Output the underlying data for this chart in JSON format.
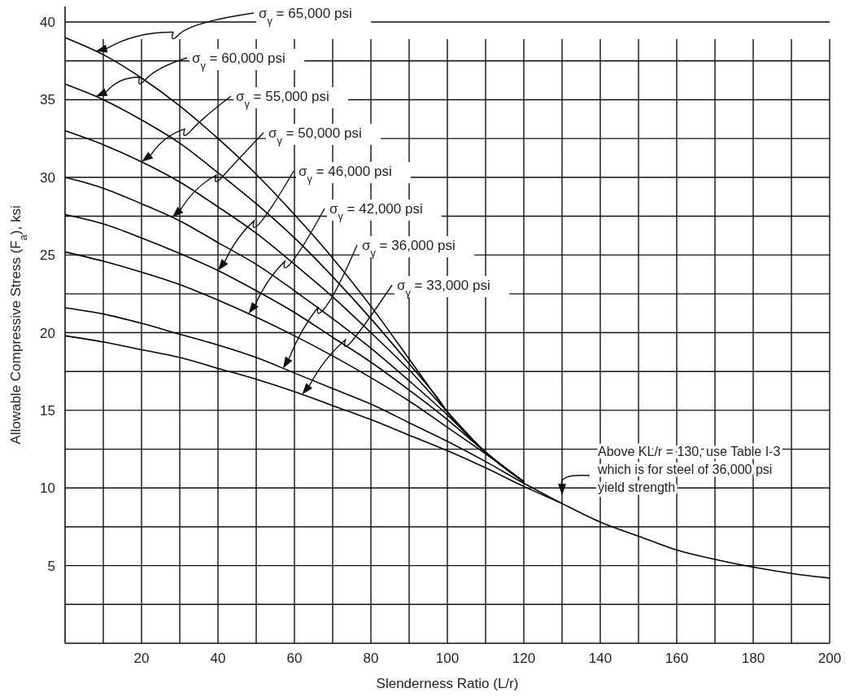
{
  "chart_data": {
    "type": "line",
    "xlabel": "Slenderness Ratio (L/r)",
    "ylabel": "Allowable Compressive Stress (F$_{a}$), ksi",
    "xlim": [
      0,
      200
    ],
    "ylim": [
      0,
      41
    ],
    "xticks": [
      {
        "value": 10,
        "label": null
      },
      20,
      {
        "value": 30,
        "label": null
      },
      40,
      {
        "value": 50,
        "label": null
      },
      60,
      {
        "value": 70,
        "label": null
      },
      80,
      {
        "value": 90,
        "label": null
      },
      100,
      {
        "value": 110,
        "label": null
      },
      120,
      {
        "value": 130,
        "label": null
      },
      140,
      {
        "value": 150,
        "label": null
      },
      160,
      {
        "value": 170,
        "label": null
      },
      180,
      {
        "value": 190,
        "label": null
      },
      200
    ],
    "yticks": [
      {
        "value": 2.5,
        "label": null
      },
      5,
      {
        "value": 7.5,
        "label": null
      },
      10,
      {
        "value": 12.5,
        "label": null
      },
      15,
      {
        "value": 17.5,
        "label": null
      },
      20,
      {
        "value": 22.5,
        "label": null
      },
      25,
      {
        "value": 27.5,
        "label": null
      },
      30,
      {
        "value": 32.5,
        "label": null
      },
      35,
      {
        "value": 37.5,
        "label": null
      },
      40
    ],
    "grid": true,
    "series": [
      {
        "name": "σ$_{γ}$ = 65,000 psi",
        "color": "#000000",
        "x": [
          0,
          10,
          20,
          30,
          40,
          50,
          60,
          70,
          80,
          90,
          93.8,
          100,
          110,
          120
        ],
        "values": [
          39.0,
          37.9,
          36.4,
          34.6,
          32.5,
          30.2,
          27.6,
          24.8,
          21.7,
          18.3,
          17.0,
          14.9,
          12.3,
          10.4
        ]
      },
      {
        "name": "σ$_{γ}$ = 60,000 psi",
        "color": "#000000",
        "x": [
          0,
          10,
          20,
          30,
          40,
          50,
          60,
          70,
          80,
          90,
          97.7,
          100,
          110,
          120
        ],
        "values": [
          36.0,
          35.0,
          33.7,
          32.2,
          30.3,
          28.3,
          26.1,
          23.6,
          20.9,
          18.0,
          15.7,
          14.9,
          12.3,
          10.4
        ]
      },
      {
        "name": "σ$_{γ}$ = 55,000 psi",
        "color": "#000000",
        "x": [
          0,
          10,
          20,
          30,
          40,
          50,
          60,
          70,
          80,
          90,
          100,
          110,
          120
        ],
        "values": [
          33.0,
          32.1,
          31.0,
          29.7,
          28.1,
          26.4,
          24.4,
          22.3,
          20.0,
          17.6,
          14.9,
          12.3,
          10.4
        ]
      },
      {
        "name": "σ$_{γ}$ = 50,000 psi",
        "color": "#000000",
        "x": [
          0,
          10,
          20,
          30,
          40,
          50,
          60,
          70,
          80,
          90,
          100,
          107,
          110,
          120
        ],
        "values": [
          30.0,
          29.3,
          28.3,
          27.2,
          25.8,
          24.4,
          22.7,
          20.9,
          19.0,
          16.9,
          14.7,
          13.0,
          12.3,
          10.4
        ]
      },
      {
        "name": "σ$_{γ}$ = 46,000 psi",
        "color": "#000000",
        "x": [
          0,
          10,
          20,
          30,
          40,
          50,
          60,
          70,
          80,
          90,
          100,
          110,
          120
        ],
        "values": [
          27.6,
          27.0,
          26.1,
          25.1,
          24.0,
          22.7,
          21.3,
          19.7,
          18.1,
          16.3,
          14.4,
          12.3,
          10.4
        ]
      },
      {
        "name": "σ$_{γ}$ = 42,000 psi",
        "color": "#000000",
        "x": [
          0,
          10,
          20,
          30,
          40,
          50,
          60,
          70,
          80,
          90,
          100,
          110,
          116.7,
          120
        ],
        "values": [
          25.2,
          24.6,
          23.9,
          23.1,
          22.1,
          21.0,
          19.8,
          18.5,
          17.1,
          15.6,
          13.9,
          12.2,
          11.0,
          10.4
        ]
      },
      {
        "name": "σ$_{γ}$ = 36,000 psi",
        "color": "#000000",
        "x": [
          0,
          10,
          20,
          30,
          40,
          50,
          60,
          70,
          80,
          90,
          100,
          110,
          120,
          130,
          140,
          150,
          160,
          170,
          180,
          190,
          200
        ],
        "values": [
          21.6,
          21.2,
          20.6,
          19.9,
          19.2,
          18.4,
          17.4,
          16.4,
          15.4,
          14.2,
          13.0,
          11.7,
          10.3,
          9.0,
          7.8,
          6.9,
          6.0,
          5.4,
          4.9,
          4.5,
          4.2
        ]
      },
      {
        "name": "σ$_{γ}$ = 33,000 psi",
        "color": "#000000",
        "x": [
          0,
          10,
          20,
          30,
          40,
          50,
          60,
          70,
          80,
          90,
          100,
          110,
          120,
          130
        ],
        "values": [
          19.8,
          19.4,
          18.9,
          18.4,
          17.7,
          17.0,
          16.2,
          15.3,
          14.4,
          13.4,
          12.4,
          11.3,
          10.1,
          9.0
        ]
      }
    ],
    "annotations": [
      {
        "text": "Above KL/r = 130, use Table I-3 which is for steel of 36,000 psi yield strength",
        "x": 130,
        "y": 9.0
      }
    ]
  }
}
